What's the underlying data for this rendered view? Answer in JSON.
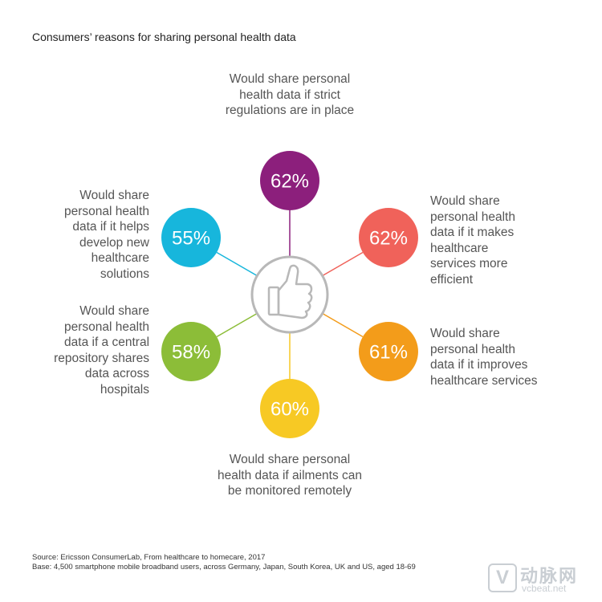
{
  "title": "Consumers’ reasons for sharing personal health data",
  "chart_data": {
    "type": "radial-bubble",
    "title": "Consumers’ reasons for sharing personal health data",
    "center_icon": "thumbs-up-icon",
    "series": [
      {
        "value": 62,
        "display": "62%",
        "color": "#8c1f7c",
        "label_lines": [
          "Would share personal",
          "health data if strict",
          "regulations are in place"
        ]
      },
      {
        "value": 62,
        "display": "62%",
        "color": "#f0625a",
        "label_lines": [
          "Would share",
          "personal health",
          "data if it makes",
          "healthcare",
          "services more",
          "efficient"
        ]
      },
      {
        "value": 61,
        "display": "61%",
        "color": "#f39c1a",
        "label_lines": [
          "Would share",
          "personal health",
          "data if it improves",
          "healthcare services"
        ]
      },
      {
        "value": 60,
        "display": "60%",
        "color": "#f7c924",
        "label_lines": [
          "Would share personal",
          "health data if ailments can",
          "be monitored remotely"
        ]
      },
      {
        "value": 58,
        "display": "58%",
        "color": "#8cbd38",
        "label_lines": [
          "Would share",
          "personal health",
          "data if a central",
          "repository shares",
          "data across",
          "hospitals"
        ]
      },
      {
        "value": 55,
        "display": "55%",
        "color": "#17b6dc",
        "label_lines": [
          "Would share",
          "personal health",
          "data if it helps",
          "develop new",
          "healthcare",
          "solutions"
        ]
      }
    ]
  },
  "footer": {
    "source": "Source: Ericsson ConsumerLab, From healthcare to homecare, 2017",
    "base": "Base: 4,500 smartphone mobile broadband users, across Germany, Japan, South Korea, UK and US, aged 18-69"
  },
  "watermark": {
    "box_letter": "V",
    "cn": "动脉网",
    "url": "vcbeat.net"
  }
}
